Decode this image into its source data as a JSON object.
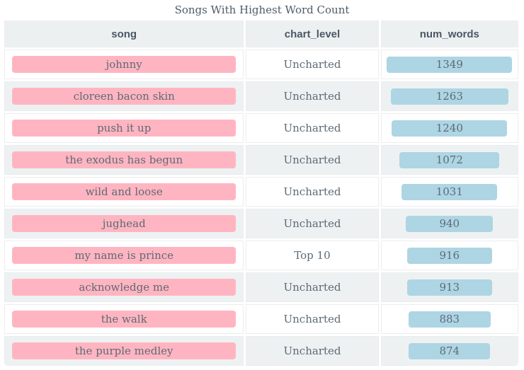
{
  "title": "Songs With Highest Word Count",
  "colors": {
    "pill_pink": "#ffb5c1",
    "bar_blue": "#aed5e3",
    "header_bg": "#edf0f1",
    "row_alt_bg": "#eef1f2",
    "text": "#5d6a75",
    "title_text": "#4e5c68"
  },
  "table": {
    "columns": [
      "song",
      "chart_level",
      "num_words"
    ],
    "bar_max": 1349,
    "bar_max_pct": 92,
    "rows": [
      {
        "song": "johnny",
        "chart_level": "Uncharted",
        "num_words": 1349
      },
      {
        "song": "cloreen bacon skin",
        "chart_level": "Uncharted",
        "num_words": 1263
      },
      {
        "song": "push it up",
        "chart_level": "Uncharted",
        "num_words": 1240
      },
      {
        "song": "the exodus has begun",
        "chart_level": "Uncharted",
        "num_words": 1072
      },
      {
        "song": "wild and loose",
        "chart_level": "Uncharted",
        "num_words": 1031
      },
      {
        "song": "jughead",
        "chart_level": "Uncharted",
        "num_words": 940
      },
      {
        "song": "my name is prince",
        "chart_level": "Top 10",
        "num_words": 916
      },
      {
        "song": "acknowledge me",
        "chart_level": "Uncharted",
        "num_words": 913
      },
      {
        "song": "the walk",
        "chart_level": "Uncharted",
        "num_words": 883
      },
      {
        "song": "the purple medley",
        "chart_level": "Uncharted",
        "num_words": 874
      }
    ]
  },
  "chart_data": {
    "type": "table",
    "title": "Songs With Highest Word Count",
    "columns": [
      "song",
      "chart_level",
      "num_words"
    ],
    "categories": [
      "johnny",
      "cloreen bacon skin",
      "push it up",
      "the exodus has begun",
      "wild and loose",
      "jughead",
      "my name is prince",
      "acknowledge me",
      "the walk",
      "the purple medley"
    ],
    "chart_levels": [
      "Uncharted",
      "Uncharted",
      "Uncharted",
      "Uncharted",
      "Uncharted",
      "Uncharted",
      "Top 10",
      "Uncharted",
      "Uncharted",
      "Uncharted"
    ],
    "values": [
      1349,
      1263,
      1240,
      1072,
      1031,
      940,
      916,
      913,
      883,
      874
    ],
    "bar_column": "num_words",
    "bar_range": [
      0,
      1349
    ],
    "notes": "num_words cells rendered as centered horizontal bars with width proportional to value"
  }
}
